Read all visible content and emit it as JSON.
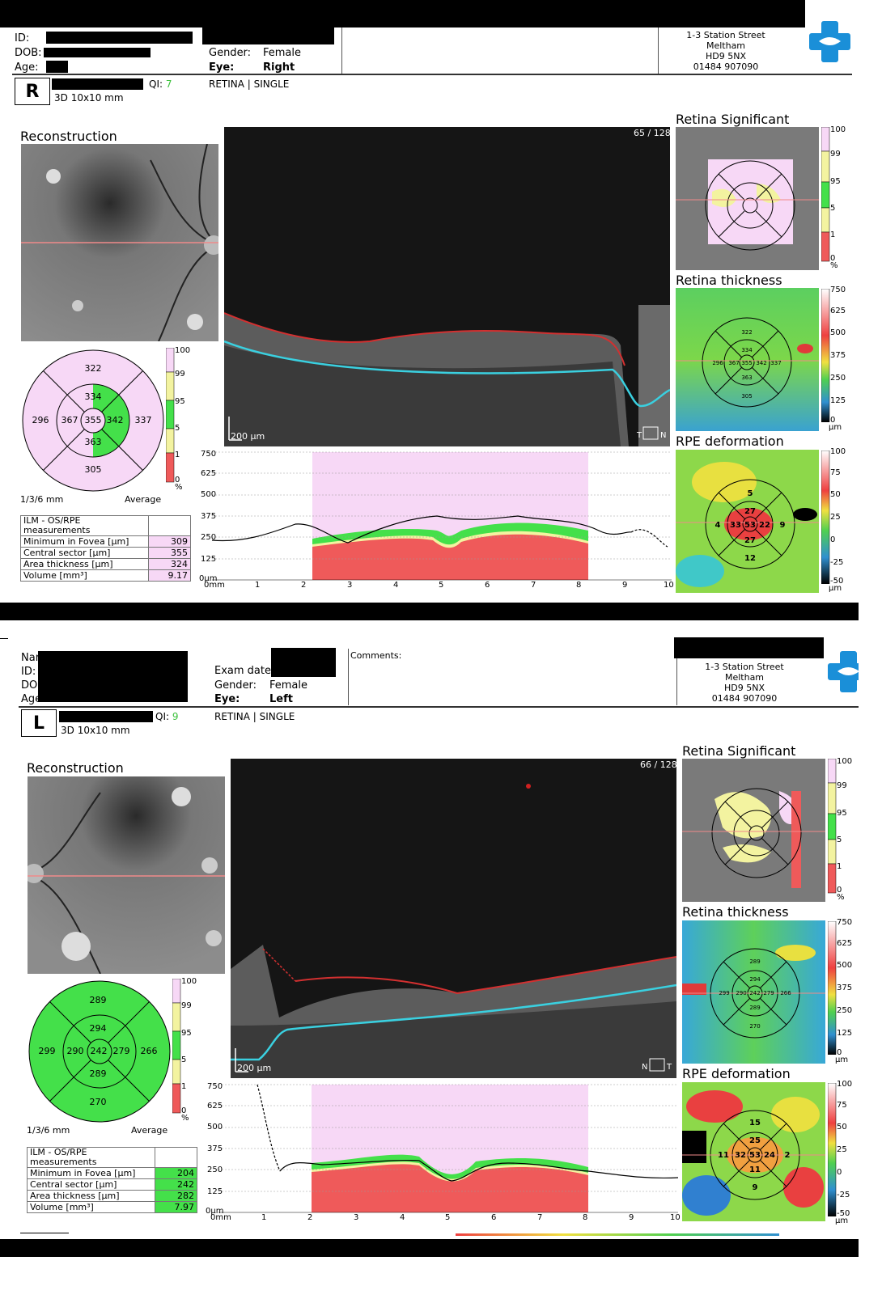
{
  "clinic": {
    "address": [
      "1-3 Station Street",
      "Meltham",
      "HD9 5NX",
      "01484 907090"
    ]
  },
  "report1": {
    "labels": {
      "id": "ID:",
      "dob": "DOB:",
      "age": "Age:",
      "gender": "Gender:",
      "eye": "Eye:"
    },
    "gender": "Female",
    "eye": "Right",
    "eye_letter": "R",
    "qi_label": "QI:",
    "qi_value": "7",
    "scan_type": "RETINA | SINGLE",
    "scan_protocol": "3D  10x10 mm",
    "reconstruction_title": "Reconstruction",
    "bscan_counter": "65 / 128",
    "scale_bar": "200 µm",
    "direction_left": "T",
    "direction_right": "N",
    "etdrs": {
      "outer_top": "322",
      "outer_left": "296",
      "outer_right": "337",
      "outer_bottom": "305",
      "inner_top": "334",
      "inner_left": "367",
      "inner_right": "342",
      "inner_bottom": "363",
      "center": "355"
    },
    "etdrs_caption_left": "1/3/6 mm",
    "etdrs_caption_right": "Average",
    "measurements_title": "ILM - OS/RPE measurements",
    "measurements": [
      {
        "label": "Minimum in Fovea [µm]",
        "value": "309"
      },
      {
        "label": "Central sector [µm]",
        "value": "355"
      },
      {
        "label": "Area thickness [µm]",
        "value": "324"
      },
      {
        "label": "Volume [mm³]",
        "value": "9.17"
      }
    ],
    "side_titles": {
      "significant": "Retina Significant",
      "thickness": "Retina thickness",
      "rpe": "RPE deformation"
    },
    "thickness_map_values": {
      "outer_top": "322",
      "inner_top": "334",
      "outer_left": "296",
      "inner_left": "367",
      "center": "355",
      "inner_right": "342",
      "outer_right": "337",
      "inner_bottom": "363",
      "outer_bottom": "305"
    },
    "rpe_values": {
      "outer_top": "5",
      "inner_top": "27",
      "outer_left": "4",
      "inner_left": "33",
      "center": "53",
      "inner_right": "22",
      "outer_right": "9",
      "inner_bottom": "27",
      "outer_bottom": "12"
    }
  },
  "report2": {
    "labels": {
      "exam_date": "Exam date:",
      "gender": "Gender:",
      "eye": "Eye:",
      "comments": "Comments:"
    },
    "gender": "Female",
    "eye": "Left",
    "eye_letter": "L",
    "qi_label": "QI:",
    "qi_value": "9",
    "scan_type": "RETINA | SINGLE",
    "scan_protocol": "3D  10x10 mm",
    "reconstruction_title": "Reconstruction",
    "bscan_counter": "66 / 128",
    "scale_bar": "200 µm",
    "direction_left": "N",
    "direction_right": "T",
    "etdrs": {
      "outer_top": "289",
      "outer_left": "299",
      "outer_right": "266",
      "outer_bottom": "270",
      "inner_top": "294",
      "inner_left": "290",
      "inner_right": "279",
      "inner_bottom": "289",
      "center": "242"
    },
    "etdrs_caption_left": "1/3/6 mm",
    "etdrs_caption_right": "Average",
    "measurements_title": "ILM - OS/RPE measurements",
    "measurements": [
      {
        "label": "Minimum in Fovea [µm]",
        "value": "204"
      },
      {
        "label": "Central sector [µm]",
        "value": "242"
      },
      {
        "label": "Area thickness [µm]",
        "value": "282"
      },
      {
        "label": "Volume [mm³]",
        "value": "7.97"
      }
    ],
    "side_titles": {
      "significant": "Retina Significant",
      "thickness": "Retina thickness",
      "rpe": "RPE deformation"
    },
    "thickness_map_values": {
      "outer_top": "289",
      "inner_top": "294",
      "outer_left": "299",
      "inner_left": "290",
      "center": "242",
      "inner_right": "279",
      "outer_right": "266",
      "inner_bottom": "289",
      "outer_bottom": "270"
    },
    "rpe_values": {
      "outer_top": "15",
      "inner_top": "25",
      "outer_left": "11",
      "inner_left": "32",
      "center": "53",
      "inner_right": "24",
      "outer_right": "2",
      "inner_bottom": "11",
      "outer_bottom": "9"
    }
  },
  "scales": {
    "significance": [
      "100",
      "99",
      "95",
      "5",
      "1",
      "0",
      "%"
    ],
    "thickness": [
      "750",
      "625",
      "500",
      "375",
      "250",
      "125",
      "0",
      "µm"
    ],
    "rpe": [
      "100",
      "75",
      "50",
      "25",
      "0",
      "-25",
      "-50",
      "µm"
    ],
    "profile_y": [
      "750",
      "625",
      "500",
      "375",
      "250",
      "125",
      "0µm"
    ],
    "profile_x": [
      "0mm",
      "1",
      "2",
      "3",
      "4",
      "5",
      "6",
      "7",
      "8",
      "9",
      "10"
    ]
  },
  "colors": {
    "qi": "#3cc13c",
    "ilm": "#d23030",
    "rpe": "#3ad0e0",
    "normal_green": "#44e04a",
    "pink": "#f7d8f6",
    "red": "#ef5a5a"
  }
}
